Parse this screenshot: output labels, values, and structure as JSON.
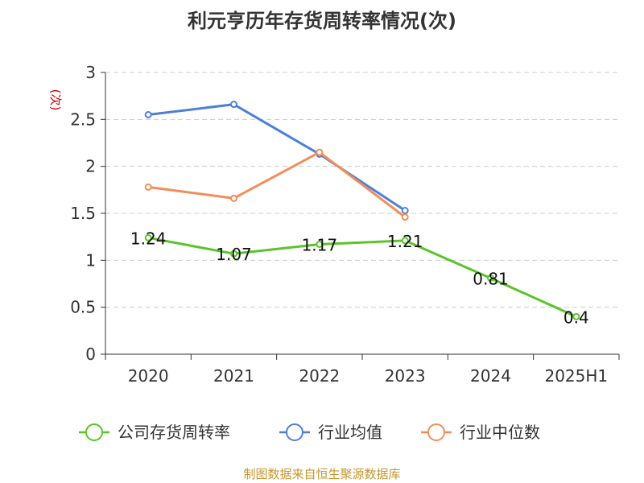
{
  "chart_data": {
    "type": "line",
    "title": "利元亨历年存货周转率情况(次)",
    "ylabel": "(次)",
    "xlabel": "",
    "categories": [
      "2020",
      "2021",
      "2022",
      "2023",
      "2024",
      "2025H1"
    ],
    "ylim": [
      0,
      3
    ],
    "yticks": [
      "0",
      "0.5",
      "1",
      "1.5",
      "2",
      "2.5",
      "3"
    ],
    "grid": true,
    "legend_position": "bottom",
    "series": [
      {
        "name": "公司存货周转率",
        "color": "#5ac42a",
        "values": [
          1.24,
          1.07,
          1.17,
          1.21,
          0.81,
          0.4
        ],
        "labels": [
          "1.24",
          "1.07",
          "1.17",
          "1.21",
          "0.81",
          "0.4"
        ]
      },
      {
        "name": "行业均值",
        "color": "#4e7fd8",
        "values": [
          2.55,
          2.66,
          2.13,
          1.53,
          null,
          null
        ]
      },
      {
        "name": "行业中位数",
        "color": "#f28d5a",
        "values": [
          1.78,
          1.66,
          2.15,
          1.46,
          null,
          null
        ]
      }
    ],
    "source": "制图数据来自恒生聚源数据库"
  }
}
